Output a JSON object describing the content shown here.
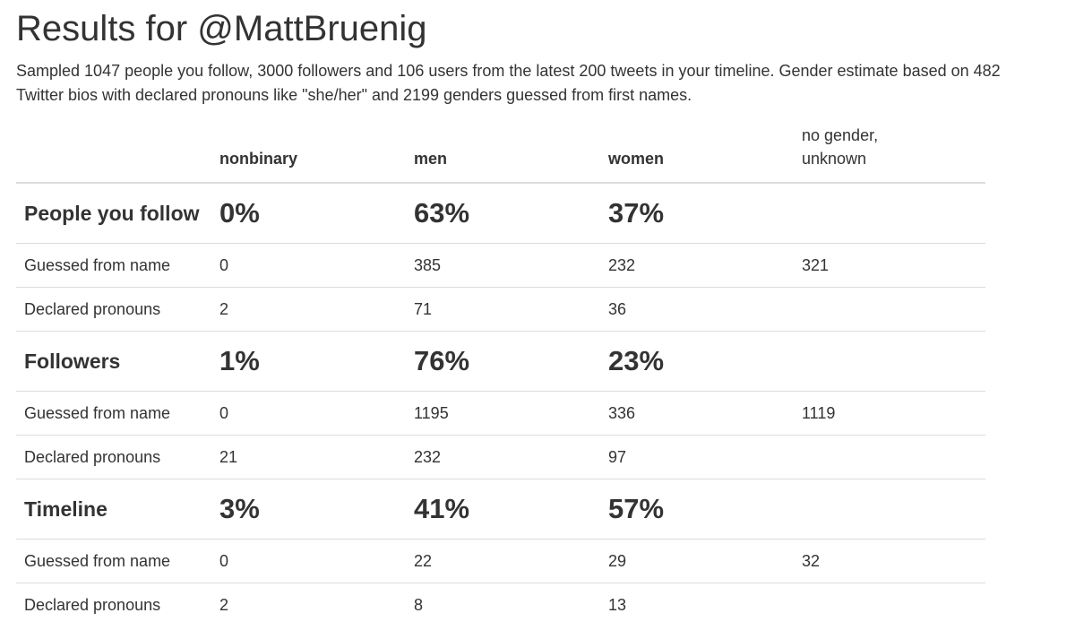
{
  "title": "Results for @MattBruenig",
  "summary": "Sampled 1047 people you follow, 3000 followers and 106 users from the latest 200 tweets in your timeline. Gender estimate based on 482 Twitter bios with declared pronouns like \"she/her\" and 2199 genders guessed from first names.",
  "columns": {
    "nonbinary": "nonbinary",
    "men": "men",
    "women": "women",
    "unknown_line1": "no gender,",
    "unknown_line2": "unknown"
  },
  "sections": [
    {
      "label": "People you follow",
      "percent": {
        "nonbinary": "0%",
        "men": "63%",
        "women": "37%",
        "unknown": ""
      },
      "rows": [
        {
          "label": "Guessed from name",
          "nonbinary": "0",
          "men": "385",
          "women": "232",
          "unknown": "321"
        },
        {
          "label": "Declared pronouns",
          "nonbinary": "2",
          "men": "71",
          "women": "36",
          "unknown": ""
        }
      ]
    },
    {
      "label": "Followers",
      "percent": {
        "nonbinary": "1%",
        "men": "76%",
        "women": "23%",
        "unknown": ""
      },
      "rows": [
        {
          "label": "Guessed from name",
          "nonbinary": "0",
          "men": "1195",
          "women": "336",
          "unknown": "1119"
        },
        {
          "label": "Declared pronouns",
          "nonbinary": "21",
          "men": "232",
          "women": "97",
          "unknown": ""
        }
      ]
    },
    {
      "label": "Timeline",
      "percent": {
        "nonbinary": "3%",
        "men": "41%",
        "women": "57%",
        "unknown": ""
      },
      "rows": [
        {
          "label": "Guessed from name",
          "nonbinary": "0",
          "men": "22",
          "women": "29",
          "unknown": "32"
        },
        {
          "label": "Declared pronouns",
          "nonbinary": "2",
          "men": "8",
          "women": "13",
          "unknown": ""
        }
      ]
    }
  ]
}
